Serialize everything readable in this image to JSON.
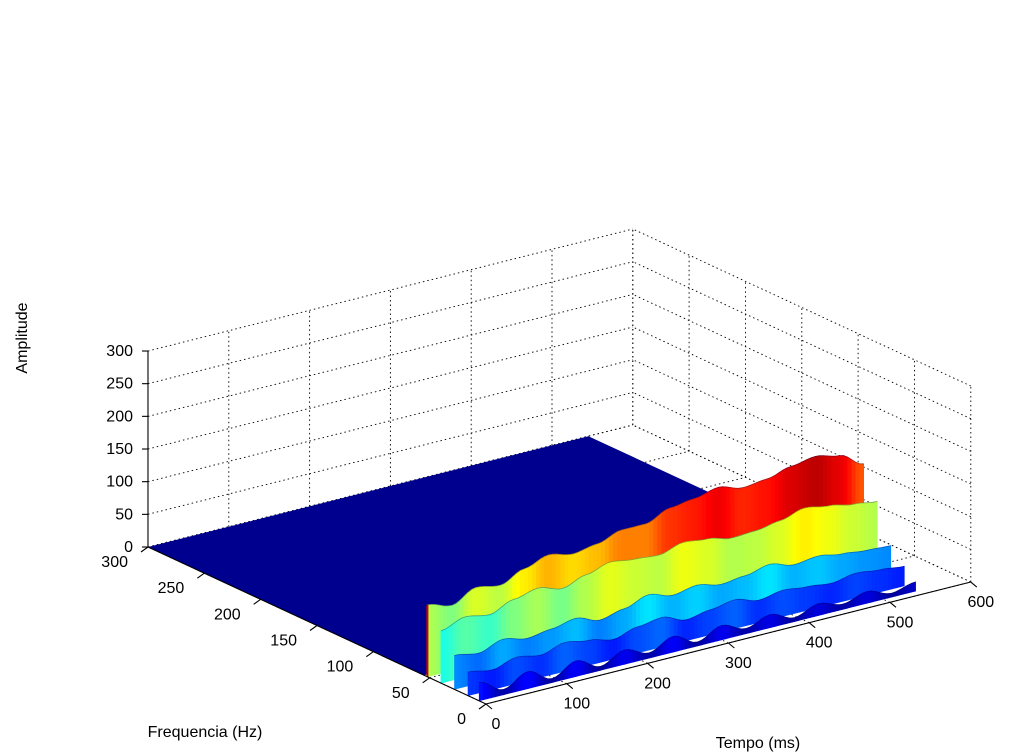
{
  "chart_data": {
    "type": "surface",
    "title": "",
    "xlabel": "Tempo (ms)",
    "ylabel": "Frequencia (Hz)",
    "zlabel": "Amplitude",
    "xlim": [
      0,
      600
    ],
    "ylim": [
      0,
      300
    ],
    "zlim": [
      0,
      300
    ],
    "x_ticks": [
      "0",
      "100",
      "200",
      "300",
      "400",
      "500",
      "600"
    ],
    "y_ticks": [
      "0",
      "50",
      "100",
      "150",
      "200",
      "250",
      "300"
    ],
    "z_ticks": [
      "0",
      "50",
      "100",
      "150",
      "200",
      "250",
      "300"
    ],
    "grid": true,
    "colormap": "jet",
    "color_range": [
      0,
      200
    ],
    "nonzero_frequency_range": [
      0,
      55
    ],
    "ridges": [
      {
        "freq": 52,
        "values": [
          [
            0,
            110
          ],
          [
            30,
            100
          ],
          [
            60,
            118
          ],
          [
            90,
            112
          ],
          [
            120,
            128
          ],
          [
            150,
            140
          ],
          [
            180,
            132
          ],
          [
            210,
            138
          ],
          [
            240,
            150
          ],
          [
            270,
            150
          ],
          [
            300,
            165
          ],
          [
            330,
            170
          ],
          [
            360,
            178
          ],
          [
            390,
            168
          ],
          [
            420,
            172
          ],
          [
            450,
            182
          ],
          [
            480,
            188
          ],
          [
            510,
            180
          ],
          [
            540,
            158
          ]
        ]
      },
      {
        "freq": 40,
        "values": [
          [
            0,
            80
          ],
          [
            30,
            92
          ],
          [
            60,
            86
          ],
          [
            90,
            100
          ],
          [
            120,
            108
          ],
          [
            150,
            98
          ],
          [
            180,
            110
          ],
          [
            210,
            120
          ],
          [
            240,
            115
          ],
          [
            270,
            112
          ],
          [
            300,
            122
          ],
          [
            330,
            118
          ],
          [
            360,
            110
          ],
          [
            390,
            112
          ],
          [
            420,
            118
          ],
          [
            450,
            128
          ],
          [
            480,
            122
          ],
          [
            510,
            115
          ],
          [
            540,
            110
          ]
        ]
      },
      {
        "freq": 28,
        "values": [
          [
            0,
            52
          ],
          [
            30,
            46
          ],
          [
            60,
            58
          ],
          [
            90,
            50
          ],
          [
            120,
            55
          ],
          [
            150,
            62
          ],
          [
            180,
            50
          ],
          [
            210,
            58
          ],
          [
            240,
            70
          ],
          [
            270,
            60
          ],
          [
            300,
            66
          ],
          [
            330,
            58
          ],
          [
            360,
            62
          ],
          [
            390,
            70
          ],
          [
            420,
            60
          ],
          [
            450,
            64
          ],
          [
            480,
            58
          ],
          [
            510,
            54
          ],
          [
            540,
            52
          ]
        ]
      },
      {
        "freq": 16,
        "values": [
          [
            0,
            36
          ],
          [
            30,
            30
          ],
          [
            60,
            40
          ],
          [
            90,
            34
          ],
          [
            120,
            44
          ],
          [
            150,
            38
          ],
          [
            180,
            30
          ],
          [
            210,
            40
          ],
          [
            240,
            45
          ],
          [
            270,
            32
          ],
          [
            300,
            38
          ],
          [
            330,
            44
          ],
          [
            360,
            34
          ],
          [
            390,
            40
          ],
          [
            420,
            36
          ],
          [
            450,
            32
          ],
          [
            480,
            38
          ],
          [
            510,
            34
          ],
          [
            540,
            30
          ]
        ]
      },
      {
        "freq": 6,
        "values": [
          [
            0,
            28
          ],
          [
            30,
            8
          ],
          [
            60,
            26
          ],
          [
            90,
            6
          ],
          [
            120,
            24
          ],
          [
            150,
            6
          ],
          [
            180,
            22
          ],
          [
            210,
            8
          ],
          [
            240,
            24
          ],
          [
            270,
            6
          ],
          [
            300,
            22
          ],
          [
            330,
            8
          ],
          [
            360,
            20
          ],
          [
            390,
            6
          ],
          [
            420,
            18
          ],
          [
            450,
            8
          ],
          [
            480,
            18
          ],
          [
            510,
            6
          ],
          [
            540,
            14
          ]
        ]
      }
    ]
  }
}
